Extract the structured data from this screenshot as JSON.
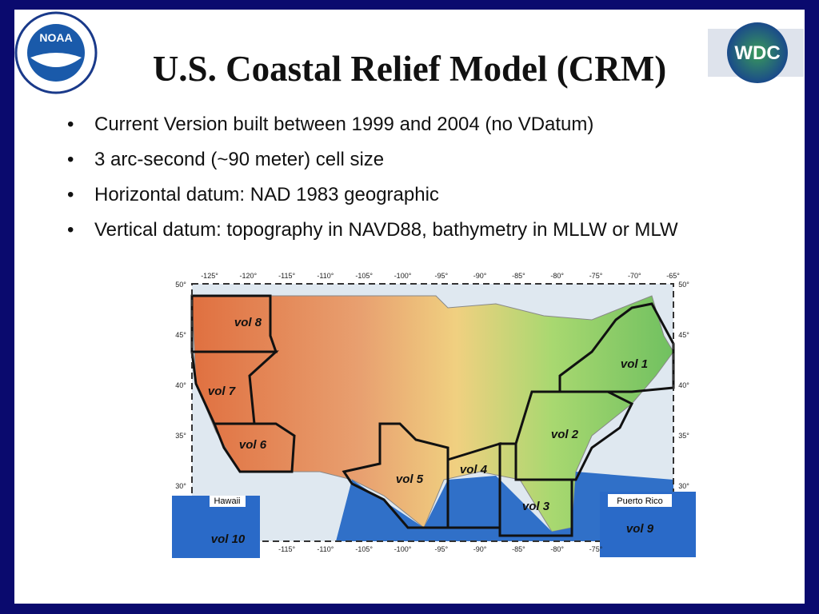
{
  "header": {
    "title": "U.S. Coastal Relief Model (CRM)",
    "left_logo": "NOAA",
    "right_logo": "WDC"
  },
  "bullets": [
    "Current Version built between 1999 and 2004 (no VDatum)",
    "3 arc-second (~90 meter) cell size",
    "Horizontal datum: NAD 1983 geographic",
    "Vertical datum: topography in NAVD88, bathymetry in MLLW or MLW"
  ],
  "map": {
    "top_labels": [
      "-125°",
      "-120°",
      "-115°",
      "-110°",
      "-105°",
      "-100°",
      "-95°",
      "-90°",
      "-85°",
      "-80°",
      "-75°",
      "-70°",
      "-65°"
    ],
    "bottom_labels": [
      "-115°",
      "-110°",
      "-105°",
      "-100°",
      "-95°",
      "-90°",
      "-85°",
      "-80°",
      "-75°"
    ],
    "left_labels": [
      "50°",
      "45°",
      "40°",
      "35°",
      "30°"
    ],
    "right_labels": [
      "50°",
      "45°",
      "40°",
      "35°",
      "30°"
    ],
    "volumes": [
      "vol 1",
      "vol 2",
      "vol 3",
      "vol 4",
      "vol 5",
      "vol 6",
      "vol 7",
      "vol 8",
      "vol 9",
      "vol 10"
    ],
    "insets": [
      "Hawaii",
      "Puerto Rico"
    ]
  }
}
